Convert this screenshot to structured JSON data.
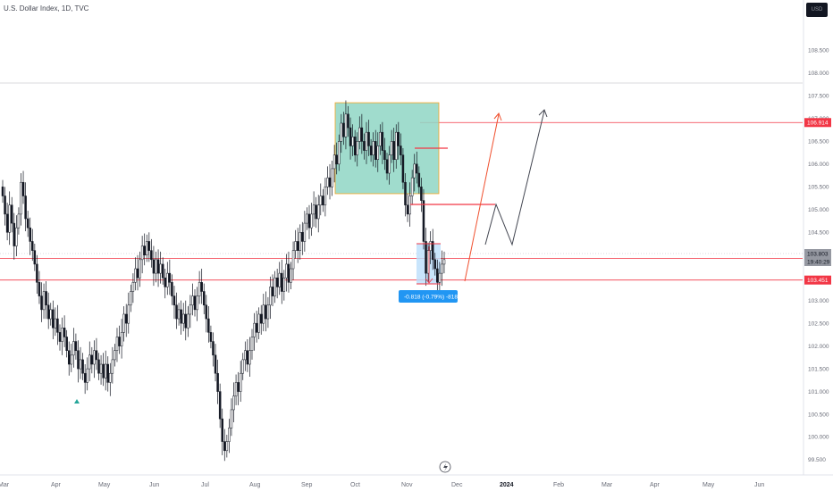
{
  "header": {
    "title": "U.S. Dollar Index, 1D, TVC",
    "currency_label": "USD"
  },
  "colors": {
    "bull": "#ffffff",
    "bear": "#131722",
    "red": "#f23645",
    "blue": "#2962ff",
    "green_box": "#8fd6c4",
    "box_border": "#f5a623"
  },
  "chart_data": {
    "type": "candlestick",
    "symbol": "U.S. Dollar Index",
    "interval": "1D",
    "source": "TVC",
    "ylim": [
      99.5,
      109.0
    ],
    "y_ticks": [
      "108.500",
      "108.000",
      "107.500",
      "107.000",
      "106.500",
      "106.000",
      "105.500",
      "105.000",
      "104.500",
      "104.000",
      "103.500",
      "103.000",
      "102.500",
      "102.000",
      "101.500",
      "101.000",
      "100.500",
      "100.000",
      "99.500"
    ],
    "x_ticks": [
      {
        "label": "Mar",
        "bold": false
      },
      {
        "label": "Apr",
        "bold": false
      },
      {
        "label": "May",
        "bold": false
      },
      {
        "label": "Jun",
        "bold": false
      },
      {
        "label": "Jul",
        "bold": false
      },
      {
        "label": "Aug",
        "bold": false
      },
      {
        "label": "Sep",
        "bold": false
      },
      {
        "label": "Oct",
        "bold": false
      },
      {
        "label": "Nov",
        "bold": false
      },
      {
        "label": "Dec",
        "bold": false
      },
      {
        "label": "2024",
        "bold": true
      },
      {
        "label": "Feb",
        "bold": false
      },
      {
        "label": "Mar",
        "bold": false
      },
      {
        "label": "Apr",
        "bold": false
      },
      {
        "label": "May",
        "bold": false
      },
      {
        "label": "Jun",
        "bold": false
      }
    ],
    "closes": [
      105.3,
      104.9,
      104.5,
      105.1,
      104.7,
      104.2,
      104.6,
      104.9,
      105.6,
      105.3,
      104.8,
      104.6,
      104.3,
      104.1,
      103.8,
      103.4,
      103.1,
      102.8,
      103.2,
      102.9,
      102.6,
      102.8,
      102.4,
      102.6,
      102.3,
      102.1,
      102.4,
      102.2,
      101.9,
      101.6,
      101.8,
      102.1,
      101.9,
      101.5,
      101.7,
      101.4,
      101.2,
      101.5,
      101.8,
      101.6,
      101.9,
      101.7,
      101.4,
      101.6,
      101.3,
      101.6,
      101.2,
      101.4,
      101.7,
      101.9,
      102.2,
      102.0,
      102.3,
      102.7,
      102.5,
      102.9,
      103.2,
      103.4,
      103.7,
      103.5,
      103.9,
      104.2,
      104.0,
      104.3,
      104.1,
      103.9,
      103.6,
      103.9,
      103.6,
      103.8,
      103.5,
      103.3,
      103.6,
      103.4,
      103.1,
      102.9,
      102.6,
      102.8,
      102.5,
      102.7,
      102.4,
      102.7,
      102.9,
      103.1,
      102.8,
      103.1,
      103.4,
      103.2,
      102.9,
      102.6,
      102.3,
      102.1,
      101.8,
      101.4,
      101.0,
      100.4,
      99.9,
      99.7,
      99.9,
      100.2,
      100.6,
      100.9,
      101.2,
      101.0,
      101.4,
      101.7,
      101.9,
      101.6,
      101.9,
      102.2,
      102.5,
      102.3,
      102.7,
      102.5,
      102.9,
      102.6,
      102.9,
      103.3,
      103.1,
      103.5,
      103.3,
      103.6,
      103.2,
      103.5,
      103.8,
      103.4,
      103.7,
      104.1,
      104.3,
      104.1,
      104.5,
      104.3,
      104.7,
      104.9,
      104.6,
      104.9,
      105.1,
      104.8,
      105.1,
      105.3,
      105.1,
      105.5,
      105.7,
      105.5,
      105.9,
      106.2,
      106.0,
      106.5,
      106.9,
      106.6,
      107.1,
      106.8,
      106.4,
      106.6,
      106.2,
      106.5,
      106.8,
      106.5,
      106.3,
      106.7,
      106.4,
      106.2,
      106.5,
      106.1,
      106.4,
      106.7,
      106.3,
      106.1,
      105.8,
      106.2,
      106.5,
      106.1,
      106.7,
      106.4,
      106.2,
      105.6,
      105.1,
      104.9,
      105.3,
      105.7,
      106.0,
      105.8,
      105.5,
      105.2,
      104.3,
      103.6,
      104.1,
      104.3,
      103.9,
      103.7,
      103.4,
      103.6,
      103.8,
      103.9
    ],
    "lines": {
      "resistance_top": 106.914,
      "upper_red": 103.923,
      "lower_red": 103.451
    },
    "price_labels": [
      {
        "value": "106.914",
        "kind": "red"
      },
      {
        "value": "103.923",
        "kind": "red"
      },
      {
        "value": "103.803",
        "kind": "current"
      },
      {
        "value": "19:40:29",
        "kind": "countdown"
      },
      {
        "value": "103.451",
        "kind": "red"
      }
    ],
    "range_box": {
      "y_top": 107.35,
      "y_bottom": 105.35
    },
    "measure": {
      "label": "-0.818 (-0.79%) -818"
    },
    "annotations": [
      "Consolidation box",
      "Red projection arrow",
      "Black projection arrow"
    ]
  }
}
